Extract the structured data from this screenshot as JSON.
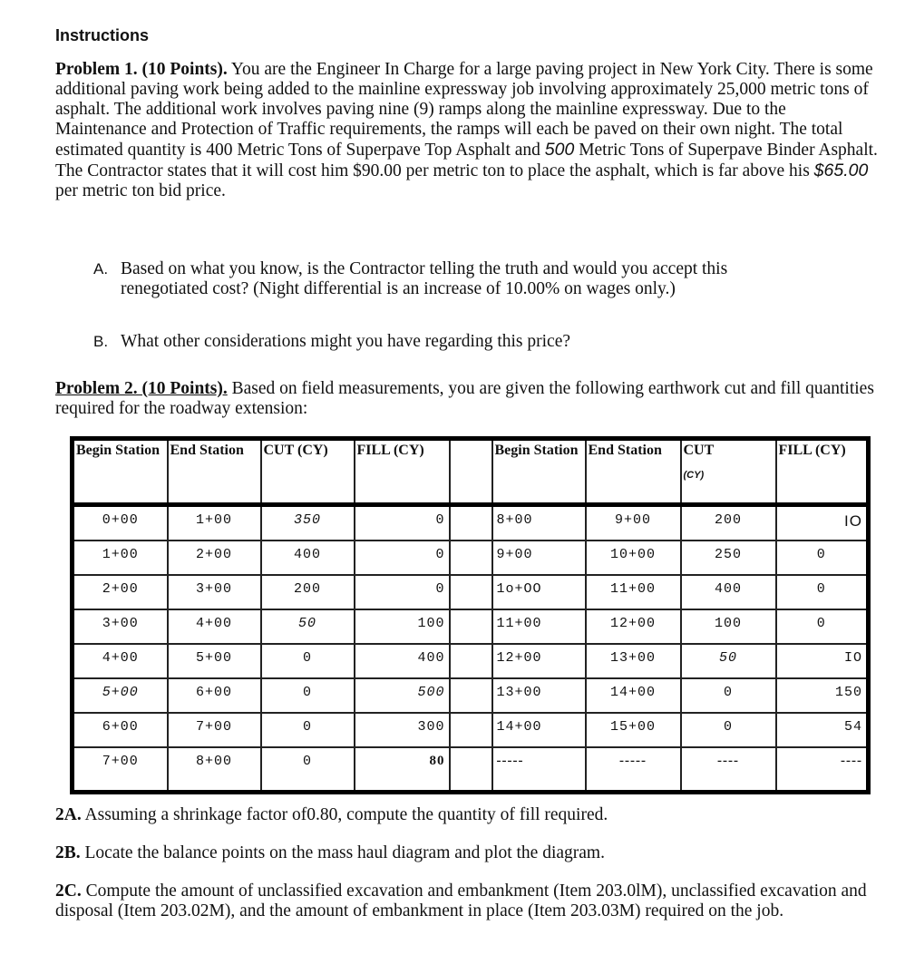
{
  "heading": "Instructions",
  "problem1": {
    "label": "Problem 1. (10 Points).",
    "text1": " You are the Engineer In Charge for a large paving project in New York City. There is some additional paving work being added to the mainline expressway job involving approximately 25,000 metric tons of asphalt. The additional work involves paving nine (9) ramps along the mainline expressway. Due to the Maintenance and Protection of Traffic requirements, the ramps will each be paved on their own night. The total estimated quantity is 400 Metric Tons of Superpave Top Asphalt and ",
    "binder_qty": "500",
    "text2": " Metric Tons of Superpave Binder Asphalt. The Contractor states that it will cost him $90.00 per metric ton to place the asphalt, which is far above his ",
    "bid_price": "$65.00",
    "text3": " per metric ton bid price.",
    "questions": [
      {
        "letter": "A.",
        "text": "Based on what you know, is the Contractor telling the truth and would you accept this renegotiated cost? (Night differential is an increase of 10.00% on wages only.)"
      },
      {
        "letter": "B.",
        "text": "What other considerations might you have regarding this price?"
      }
    ]
  },
  "problem2": {
    "label": "Problem 2. (10 Points).",
    "text": " Based on field measurements, you are given the following earthwork cut and fill quantities required for the roadway extension:"
  },
  "table": {
    "headers_left": [
      "Begin Station",
      "End Station",
      "CUT (CY)",
      "FILL (CY)"
    ],
    "headers_right": [
      "Begin Station",
      "End Station",
      "CUT",
      "FILL (CY)"
    ],
    "cut_unit_right": "(CY)",
    "rows": [
      {
        "b1": "0+00",
        "e1": "1+00",
        "c1": "350",
        "f1": "0",
        "b2": "8+00",
        "e2": "9+00",
        "c2": "200",
        "f2": "IO"
      },
      {
        "b1": "1+00",
        "e1": "2+00",
        "c1": "400",
        "f1": "0",
        "b2": "9+00",
        "e2": "10+00",
        "c2": "250",
        "f2": "0"
      },
      {
        "b1": "2+00",
        "e1": "3+00",
        "c1": "200",
        "f1": "0",
        "b2": "1o+OO",
        "e2": "11+00",
        "c2": "400",
        "f2": "0"
      },
      {
        "b1": "3+00",
        "e1": "4+00",
        "c1": "50",
        "f1": "100",
        "b2": "11+00",
        "e2": "12+00",
        "c2": "100",
        "f2": "0"
      },
      {
        "b1": "4+00",
        "e1": "5+00",
        "c1": "0",
        "f1": "400",
        "b2": "12+00",
        "e2": "13+00",
        "c2": "50",
        "f2": "IO"
      },
      {
        "b1": "5+00",
        "e1": "6+00",
        "c1": "0",
        "f1": "500",
        "b2": "13+00",
        "e2": "14+00",
        "c2": "0",
        "f2": "150"
      },
      {
        "b1": "6+00",
        "e1": "7+00",
        "c1": "0",
        "f1": "300",
        "b2": "14+00",
        "e2": "15+00",
        "c2": "0",
        "f2": "54"
      },
      {
        "b1": "7+00",
        "e1": "8+00",
        "c1": "0",
        "f1": "80",
        "b2": "-----",
        "e2": "-----",
        "c2": "----",
        "f2": "----"
      }
    ]
  },
  "q2a": {
    "label": "2A.",
    "text": " Assuming a shrinkage factor of0.80, compute the quantity of fill required."
  },
  "q2b": {
    "label": "2B.",
    "text": " Locate the balance points on the mass haul diagram and plot the diagram."
  },
  "q2c": {
    "label": "2C.",
    "text": " Compute the amount of unclassified excavation and embankment (Item 203.0lM), unclassified excavation and disposal (Item 203.02M), and the amount of embankment in place (Item 203.03M) required on the job."
  }
}
